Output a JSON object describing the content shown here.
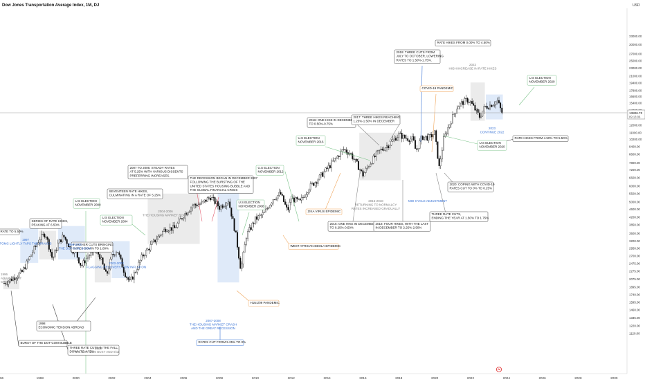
{
  "header": {
    "symbol_title": "Dow Jones Transportation Average Index, 1M, DJ",
    "currency": "USD"
  },
  "price_axis": {
    "ticks": [
      "33000.00",
      "30000.00",
      "27000.00",
      "25000.00",
      "23000.00",
      "21000.00",
      "19400.00",
      "17800.00",
      "16600.00",
      "15400.00",
      "14200.00",
      "13000.00",
      "12000.00",
      "11000.00",
      "10200.00",
      "9400.00",
      "8600.00",
      "7800.00",
      "7200.00",
      "6600.00",
      "6000.00",
      "5500.00",
      "5000.00",
      "4600.00",
      "4200.00",
      "3850.00",
      "3500.00",
      "3200.00",
      "2950.00",
      "2700.00",
      "2475.00",
      "2275.00",
      "2075.00",
      "1895.00",
      "1740.00",
      "1595.00",
      "1460.00",
      "1335.00",
      "1220.00",
      "1120.00"
    ],
    "last_price": "13806.70",
    "countdown": "09:13:06"
  },
  "time_axis": {
    "ticks": [
      "96",
      "1998",
      "2000",
      "2002",
      "2004",
      "2006",
      "2008",
      "2010",
      "2012",
      "2014",
      "2016",
      "2018",
      "2020",
      "2022",
      "2024",
      "2026",
      "2028",
      "2030"
    ]
  },
  "chart_data": {
    "type": "candlestick",
    "title": "Dow Jones Transportation Average Index, 1M, DJ",
    "interval": "1M",
    "y_scale": "log",
    "xlim": [
      1995.9,
      2030.6
    ],
    "ylim": [
      1100,
      36000
    ],
    "last_price": 13806.7,
    "price_path": [
      [
        1996.0,
        1980
      ],
      [
        1996.5,
        2100
      ],
      [
        1997.0,
        2250
      ],
      [
        1997.5,
        2750
      ],
      [
        1998.0,
        3300
      ],
      [
        1998.3,
        3500
      ],
      [
        1998.7,
        2600
      ],
      [
        1999.0,
        3100
      ],
      [
        1999.3,
        3400
      ],
      [
        1999.7,
        2950
      ],
      [
        2000.0,
        2800
      ],
      [
        2000.3,
        2400
      ],
      [
        2000.6,
        2650
      ],
      [
        2001.0,
        2850
      ],
      [
        2001.3,
        2750
      ],
      [
        2001.7,
        2150
      ],
      [
        2002.0,
        2700
      ],
      [
        2002.3,
        2900
      ],
      [
        2002.7,
        2250
      ],
      [
        2003.0,
        2000
      ],
      [
        2003.3,
        2250
      ],
      [
        2003.7,
        2700
      ],
      [
        2004.0,
        2900
      ],
      [
        2004.5,
        3300
      ],
      [
        2005.0,
        3700
      ],
      [
        2005.5,
        3700
      ],
      [
        2006.0,
        4300
      ],
      [
        2006.5,
        4800
      ],
      [
        2007.0,
        4900
      ],
      [
        2007.5,
        5300
      ],
      [
        2008.0,
        4700
      ],
      [
        2008.5,
        5100
      ],
      [
        2008.9,
        3500
      ],
      [
        2009.2,
        2300
      ],
      [
        2009.5,
        3400
      ],
      [
        2010.0,
        4100
      ],
      [
        2010.5,
        4400
      ],
      [
        2011.0,
        5200
      ],
      [
        2011.4,
        5500
      ],
      [
        2011.8,
        4500
      ],
      [
        2012.0,
        5200
      ],
      [
        2012.5,
        5000
      ],
      [
        2013.0,
        5900
      ],
      [
        2013.5,
        6500
      ],
      [
        2014.0,
        7300
      ],
      [
        2014.5,
        8200
      ],
      [
        2014.9,
        9100
      ],
      [
        2015.3,
        8700
      ],
      [
        2015.7,
        7600
      ],
      [
        2016.0,
        6800
      ],
      [
        2016.4,
        7800
      ],
      [
        2016.9,
        8900
      ],
      [
        2017.5,
        9700
      ],
      [
        2018.0,
        10800
      ],
      [
        2018.3,
        10400
      ],
      [
        2018.8,
        10200
      ],
      [
        2018.95,
        8900
      ],
      [
        2019.3,
        10500
      ],
      [
        2019.7,
        10400
      ],
      [
        2020.0,
        11000
      ],
      [
        2020.25,
        7400
      ],
      [
        2020.5,
        10200
      ],
      [
        2020.9,
        12600
      ],
      [
        2021.3,
        15000
      ],
      [
        2021.8,
        16000
      ],
      [
        2022.0,
        15600
      ],
      [
        2022.5,
        13200
      ],
      [
        2022.8,
        14800
      ],
      [
        2023.0,
        14900
      ],
      [
        2023.5,
        15800
      ],
      [
        2023.75,
        13806.7
      ]
    ],
    "annotations": [
      {
        "label": "1996",
        "sub": "ADJUSTMENT",
        "sub2": "CYCLE",
        "x": 1995.9
      },
      {
        "label": "RATE TO 5.50%",
        "x": 1996.2
      },
      {
        "label": "1997",
        "sub": "FOMC LIGHTLY TAPS THE BRAKES",
        "x": 1997.0
      },
      {
        "label": "SERIES OF RATE HIKES,",
        "sub": "PEAKING AT 6.50%",
        "x": 1999.5
      },
      {
        "label": "1999-2000",
        "sub": "THE DOT-COM BOOM",
        "x": 1999.6
      },
      {
        "label": "U.S ELECTION",
        "sub": "NOVEMBER 2000",
        "x": 2000.85
      },
      {
        "label": "FURTHER CUTS BRINGING",
        "sub": "RATES DOWN TO 1.00%",
        "x": 2002.0
      },
      {
        "label": "2002-2003",
        "sub": "FLAGGING RECOVERY, LOW INFLATION",
        "x": 2002.7
      },
      {
        "label": "U.S ELECTION",
        "sub": "NOVEMBER 2004",
        "x": 2004.85
      },
      {
        "label": "SEVENTEEN RATE HIKES,",
        "sub": "CULMINATING IN A RATE OF 5.25%",
        "x": 2004.5
      },
      {
        "label": "2004-2006",
        "sub": "THE HOUSING MARKET BOOM",
        "x": 2005.3
      },
      {
        "label": "2007 TO 2006: STEADY RATES",
        "sub": "AT 5.25% WITH VARIOUS DISSENTS",
        "sub2": "PREFERRING INCREASES.",
        "x": 2006.3
      },
      {
        "label": "THE RECESSION BEGAN IN DECEMBER 2007",
        "sub": "FOLLOWING THE BURSTING OF THE",
        "sub2": "UNITED STATES HOUSING BUBBLE AND",
        "sub3": "THE GLOBAL FINANCIAL CRISIS",
        "x": 2008.0
      },
      {
        "label": "U.S ELECTION",
        "sub": "NOVEMBER 2008",
        "x": 2008.85
      },
      {
        "label": "2007-2008",
        "sub": "THE HOUSING MARKET CRASH",
        "sub2": "AND THE GREAT RECESSION",
        "x": 2008.0
      },
      {
        "label": "RATES CUT FROM 5.25% TO 0%",
        "x": 2008.9
      },
      {
        "label": "H1N1/09 PANDEMIC",
        "x": 2009.4
      },
      {
        "label": "U.S ELECTION",
        "sub": "NOVEMBER 2012",
        "x": 2012.85
      },
      {
        "label": "WEST AFRICAN EBOLA EPIDEMIC",
        "x": 2014.2
      },
      {
        "label": "U.S ELECTION",
        "sub": "NOVEMBER 2016",
        "x": 2016.85
      },
      {
        "label": "2016: ONE HIKE IN DECEMBER",
        "sub": "TO 0.50%-0.75%",
        "x": 2016.5
      },
      {
        "label": "2017: THREE HIKES REACHING",
        "sub": "1.25%-1.50% IN DECEMBER",
        "x": 2017.5
      },
      {
        "label": "ZIKA VIRUS EPIDEMIC",
        "x": 2016.2
      },
      {
        "label": "2015-2018",
        "sub": "RETURNING TO NORMALCY",
        "sub2": "RATES INCREASED GRADUALLY",
        "x": 2016.8
      },
      {
        "label": "2015: ONE HIKE IN DECEMBER",
        "sub": "TO 0.25%-0.50%",
        "x": 2015.9
      },
      {
        "label": "2018: FOUR HIKES, WITH THE LAST",
        "sub": "IN DECEMBER TO 2.25%-2.50%",
        "x": 2018.4
      },
      {
        "label": "2019: THREE CUTS FROM",
        "sub": "JULY TO OCTOBER, LOWERING",
        "sub2": "RATES TO 1.50%-1.75%.",
        "x": 2019.5
      },
      {
        "label": "COVID-19 PANDEMIC",
        "x": 2020.2
      },
      {
        "label": "MID-CYCLE ADJUSTMENT",
        "x": 2019.8
      },
      {
        "label": "THREE RATE CUTS,",
        "sub": "ENDING THE YEAR AT 1.50% TO 1.75%",
        "x": 2019.7
      },
      {
        "label": "2020: COPING WITH COVID-19",
        "sub": "RATES CUT TO 0% TO 0.25%",
        "x": 2020.3
      },
      {
        "label": "RATE HIKES FROM 0.00% TO 4.50%",
        "x": 2022.1
      },
      {
        "label": "2022",
        "sub": "HIGH INCREASE IN RATE HIKES",
        "x": 2022.5
      },
      {
        "label": "2023",
        "sub": "CONTINUE 2022",
        "x": 2023.5
      },
      {
        "label": "U.S ELECTION",
        "sub": "NOVEMBER 2020",
        "x": 2020.85
      },
      {
        "label": "U.S ELECTION",
        "sub": "NOVEMBER 2020",
        "x": 2024.5
      },
      {
        "label": "RATE HIKES FROM 4.50% TO 5.50%",
        "x": 2023.6
      },
      {
        "label": "THE DOT-COM BUST AND 9/11",
        "x": 2001.5
      },
      {
        "label": "2001",
        "x": 2001.8
      },
      {
        "label": "1998",
        "sub": "ECONOMIC TENSION ABROAD",
        "x": 1998.3
      },
      {
        "label": "BURST OF THE DOT-COM BUBBLE",
        "x": 2000.2
      },
      {
        "label": "THREE RATE CUTS IN THE FALL,",
        "sub": "DOWN TO 4.75%",
        "x": 1998.5
      },
      {
        "label": "RATES WERE CUT AGGRESSIVELY",
        "sub": "FROM 6.00% TO 1.75%",
        "x": 2001.2
      }
    ]
  },
  "colors": {
    "up_candle": "#000000",
    "down_candle": "#000000",
    "blue_zone": "#dbe8f8",
    "grey_zone": "#e9e9e9",
    "blue_text": "#3570d4",
    "grey_text": "#7d7d7d",
    "green_line": "#7cc48a",
    "orange_line": "#f0a65c",
    "red_line": "#e15a6c",
    "blue_line": "#3570d4"
  }
}
